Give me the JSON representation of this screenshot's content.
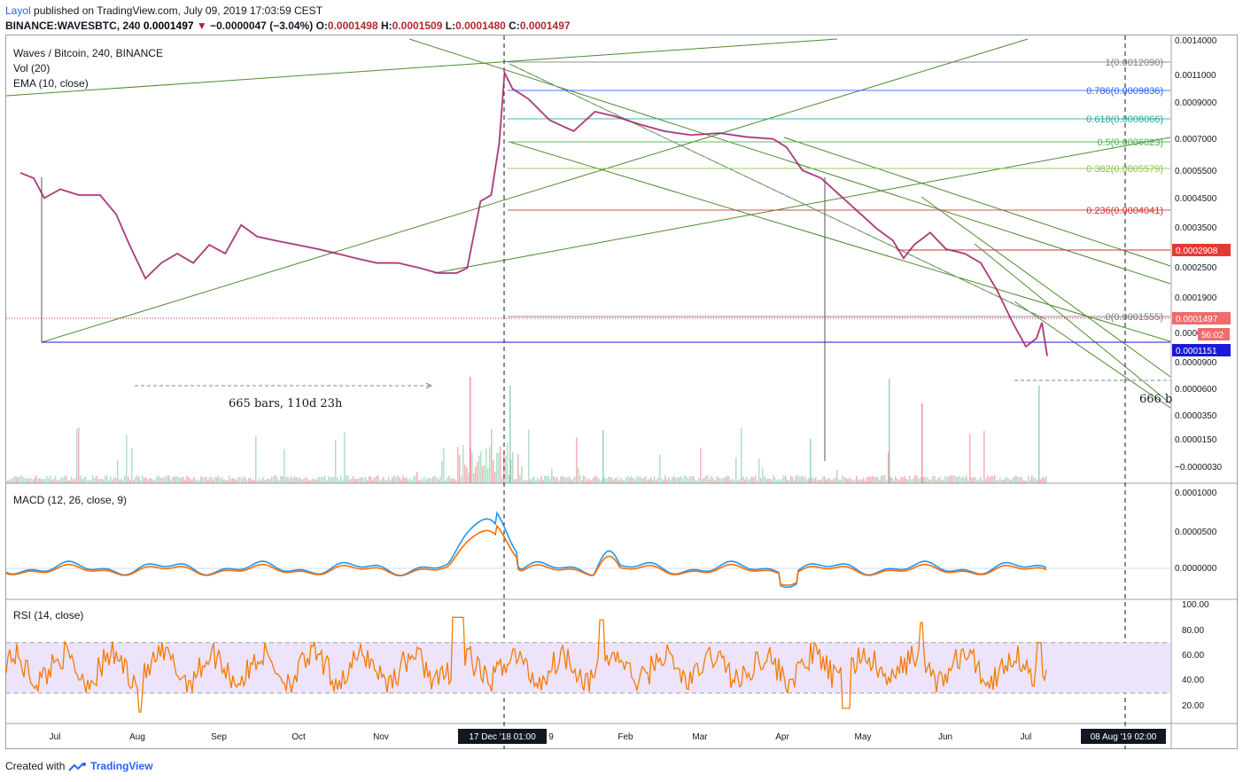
{
  "header": {
    "user": "Layol",
    "published": "published on TradingView.com, July 09, 2019 17:03:59 CEST",
    "symbol": "BINANCE:WAVESBTC, 240",
    "last": "0.0001497",
    "change_arrow": "▼",
    "change": "−0.0000047 (−3.04%)",
    "o_label": "O:",
    "o": "0.0001498",
    "h_label": "H:",
    "h": "0.0001509",
    "l_label": "L:",
    "l": "0.0001480",
    "c_label": "C:",
    "c": "0.0001497"
  },
  "legend": {
    "title": "Waves / Bitcoin, 240, BINANCE",
    "vol": "Vol (20)",
    "ema": "EMA (10, close)",
    "macd": "MACD (12, 26, close, 9)",
    "rsi": "RSI (14, close)"
  },
  "footer": {
    "created": "Created with",
    "brand": "TradingView"
  },
  "colors": {
    "up": "#53b987",
    "down": "#eb4d5c",
    "trend": "#4f8b2e",
    "macd": "#2196f3",
    "signal": "#ff6d00",
    "rsi": "#f57c00",
    "rsi_band": "#ede3fb",
    "hline_blue": "#1a1ad4",
    "hline_red": "#d32f2f"
  },
  "chart_data": {
    "type": "line",
    "price_axis_ticks": [
      "0.0014000",
      "0.0011000",
      "0.0009000",
      "0.0007000",
      "0.0005500",
      "0.0004500",
      "0.0003500",
      "0.0002500",
      "0.0001900",
      "0.0000",
      "0.0000900",
      "0.0000600",
      "0.0000350",
      "0.0000150",
      "−0.0000030"
    ],
    "price_badges": [
      {
        "text": "0.0002908",
        "kind": "red"
      },
      {
        "text": "0.0001497",
        "kind": "last"
      },
      {
        "text": "56:02",
        "kind": "last"
      },
      {
        "text": "0.0001151",
        "kind": "blue"
      }
    ],
    "macd_axis_ticks": [
      "0.0001000",
      "0.0000500",
      "0.0000000"
    ],
    "rsi_axis_ticks": [
      "100.00",
      "80.00",
      "60.00",
      "40.00",
      "20.00"
    ],
    "time_axis_ticks": [
      "Jul",
      "Aug",
      "Sep",
      "Oct",
      "Nov",
      "D",
      "9",
      "Feb",
      "Mar",
      "Apr",
      "May",
      "Jun",
      "Jul"
    ],
    "crosshair_labels": [
      "17 Dec '18   01:00",
      "08 Aug '19   02:00"
    ],
    "fib_levels": [
      {
        "ratio": "1",
        "value": "0.0012090",
        "text": "1(0.0012090)"
      },
      {
        "ratio": "0.786",
        "value": "0.0009836",
        "text": "0.786(0.0009836)"
      },
      {
        "ratio": "0.618",
        "value": "0.0008066",
        "text": "0.618(0.0008066)"
      },
      {
        "ratio": "0.5",
        "value": "0.0006823",
        "text": "0.5(0.0006823)"
      },
      {
        "ratio": "0.382",
        "value": "0.0005579",
        "text": "0.382(0.0005579)"
      },
      {
        "ratio": "0.236",
        "value": "0.0004041",
        "text": "0.236(0.0004041)"
      },
      {
        "ratio": "0",
        "value": "0.0001555",
        "text": "0(0.0001555)"
      }
    ],
    "annotations": [
      "665 bars, 110d 23h",
      "666 b"
    ],
    "price_path": [
      [
        "Jun 18",
        0.00055
      ],
      [
        "Jun 23",
        0.00053
      ],
      [
        "Jun 27",
        0.00046
      ],
      [
        "Jul 03",
        0.00049
      ],
      [
        "Jul 10",
        0.00047
      ],
      [
        "Jul 18",
        0.00047
      ],
      [
        "Jul 24",
        0.00041
      ],
      [
        "Jul 29",
        0.00033
      ],
      [
        "Aug 04",
        0.00026
      ],
      [
        "Aug 10",
        0.00029
      ],
      [
        "Aug 16",
        0.00031
      ],
      [
        "Aug 22",
        0.00029
      ],
      [
        "Aug 28",
        0.00033
      ],
      [
        "Sep 03",
        0.00031
      ],
      [
        "Sep 09",
        0.00038
      ],
      [
        "Sep 15",
        0.00035
      ],
      [
        "Sep 22",
        0.00034
      ],
      [
        "Sep 30",
        0.00033
      ],
      [
        "Oct 08",
        0.00032
      ],
      [
        "Oct 15",
        0.00031
      ],
      [
        "Oct 22",
        0.0003
      ],
      [
        "Oct 30",
        0.00029
      ],
      [
        "Nov 07",
        0.00029
      ],
      [
        "Nov 15",
        0.00028
      ],
      [
        "Nov 22",
        0.00027
      ],
      [
        "Nov 29",
        0.00027
      ],
      [
        "Dec 03",
        0.00028
      ],
      [
        "Dec 08",
        0.00045
      ],
      [
        "Dec 12",
        0.00047
      ],
      [
        "Dec 15",
        0.00068
      ],
      [
        "Dec 17",
        0.00112
      ],
      [
        "Dec 20",
        0.001
      ],
      [
        "Dec 26",
        0.00093
      ],
      [
        "Jan 03",
        0.0008
      ],
      [
        "Jan 12",
        0.00074
      ],
      [
        "Jan 20",
        0.00085
      ],
      [
        "Jan 28",
        0.00082
      ],
      [
        "Feb 05",
        0.00078
      ],
      [
        "Feb 15",
        0.00074
      ],
      [
        "Feb 25",
        0.00072
      ],
      [
        "Mar 08",
        0.00073
      ],
      [
        "Mar 18",
        0.00071
      ],
      [
        "Mar 28",
        0.0007
      ],
      [
        "Apr 02",
        0.00066
      ],
      [
        "Apr 08",
        0.00056
      ],
      [
        "Apr 15",
        0.00053
      ],
      [
        "Apr 22",
        0.00047
      ],
      [
        "Apr 30",
        0.00041
      ],
      [
        "May 06",
        0.00037
      ],
      [
        "May 12",
        0.00034
      ],
      [
        "May 16",
        0.0003
      ],
      [
        "May 20",
        0.00033
      ],
      [
        "May 26",
        0.00036
      ],
      [
        "Jun 01",
        0.00032
      ],
      [
        "Jun 08",
        0.00031
      ],
      [
        "Jun 14",
        0.00029
      ],
      [
        "Jun 20",
        0.00024
      ],
      [
        "Jun 26",
        0.00019
      ],
      [
        "Jul 01",
        0.00016
      ],
      [
        "Jul 05",
        0.00017
      ],
      [
        "Jul 07",
        0.00019
      ],
      [
        "Jul 09",
        0.0001497
      ]
    ]
  }
}
